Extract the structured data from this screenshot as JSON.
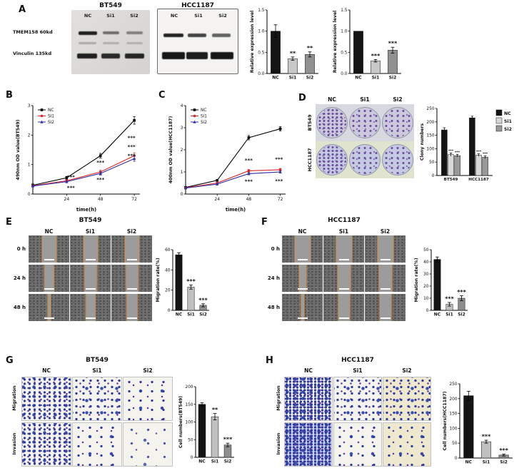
{
  "figure": {
    "panels": {
      "A": {
        "label": "A",
        "blot_groups": [
          {
            "title": "BT549",
            "lanes": [
              "NC",
              "Si1",
              "Si2"
            ]
          },
          {
            "title": "HCC1187",
            "lanes": [
              "NC",
              "Si1",
              "Si2"
            ]
          }
        ],
        "band_labels": [
          "TMEM158 60kd",
          "Vinculin 135kd"
        ]
      },
      "B": {
        "label": "B"
      },
      "C": {
        "label": "C"
      },
      "D": {
        "label": "D",
        "col_labels": [
          "NC",
          "Si1",
          "Si2"
        ],
        "row_labels": [
          "BT549",
          "HCC1187"
        ]
      },
      "E": {
        "label": "E",
        "title": "BT549",
        "col_labels": [
          "NC",
          "Si1",
          "Si2"
        ],
        "row_labels": [
          "0 h",
          "24 h",
          "48 h"
        ]
      },
      "F": {
        "label": "F",
        "title": "HCC1187",
        "col_labels": [
          "NC",
          "Si1",
          "Si2"
        ],
        "row_labels": [
          "0 h",
          "24 h",
          "48 h"
        ]
      },
      "G": {
        "label": "G",
        "title": "BT549",
        "col_labels": [
          "NC",
          "Si1",
          "Si2"
        ],
        "row_labels": [
          "Migration",
          "Invasion"
        ]
      },
      "H": {
        "label": "H",
        "title": "HCC1187",
        "col_labels": [
          "NC",
          "Si1",
          "Si2"
        ],
        "row_labels": [
          "Migration",
          "Invasion"
        ]
      }
    }
  },
  "chart_data": [
    {
      "id": "chart-a1",
      "type": "bar",
      "ylabel": "Relative expression level",
      "categories": [
        "NC",
        "Si1",
        "Si2"
      ],
      "values": [
        1.0,
        0.35,
        0.45
      ],
      "errors": [
        0.15,
        0.04,
        0.06
      ],
      "sig": [
        "",
        "**",
        "**"
      ],
      "colors": [
        "#141414",
        "#c8c8c8",
        "#909090"
      ],
      "ylim": [
        0,
        1.5
      ],
      "yticks": [
        0,
        0.5,
        1,
        1.5
      ],
      "ydec": 1,
      "margins": {
        "l": 24,
        "r": 6,
        "t": 12,
        "b": 13
      }
    },
    {
      "id": "chart-a2",
      "type": "bar",
      "ylabel": "Relative expression level",
      "categories": [
        "NC",
        "Si1",
        "Si2"
      ],
      "values": [
        1.0,
        0.3,
        0.55
      ],
      "errors": [
        0,
        0.03,
        0.07
      ],
      "sig": [
        "",
        "***",
        "***"
      ],
      "colors": [
        "#141414",
        "#c8c8c8",
        "#909090"
      ],
      "ylim": [
        0,
        1.5
      ],
      "yticks": [
        0,
        0.5,
        1,
        1.5
      ],
      "ydec": 1,
      "margins": {
        "l": 24,
        "r": 6,
        "t": 12,
        "b": 13
      }
    },
    {
      "id": "chart-b",
      "type": "line",
      "ylabel": "490nm OD value(BT549)",
      "xlabel": "time(h)",
      "x": [
        0,
        24,
        48,
        72
      ],
      "xticks": [
        24,
        48,
        72
      ],
      "xlim": [
        0,
        76
      ],
      "ylim": [
        0,
        3
      ],
      "yticks": [
        0,
        1,
        2,
        3
      ],
      "ydec": 0,
      "series": [
        {
          "name": "NC",
          "color": "#000000",
          "marker": "square",
          "values": [
            0.3,
            0.55,
            1.3,
            2.5
          ],
          "errors": [
            0.04,
            0.05,
            0.08,
            0.13
          ]
        },
        {
          "name": "Si1",
          "color": "#e02427",
          "marker": "circle",
          "values": [
            0.28,
            0.45,
            0.75,
            1.3
          ],
          "errors": [
            0.03,
            0.04,
            0.06,
            0.1
          ]
        },
        {
          "name": "Si2",
          "color": "#2f2fa8",
          "marker": "triangle",
          "values": [
            0.27,
            0.42,
            0.7,
            1.2
          ],
          "errors": [
            0.03,
            0.04,
            0.06,
            0.09
          ]
        }
      ],
      "annotations": [
        {
          "x": 27,
          "y": 0.52,
          "text": "***"
        },
        {
          "x": 27,
          "y": 0.16,
          "text": "***"
        },
        {
          "x": 48,
          "y": 1.02,
          "text": "***"
        },
        {
          "x": 48,
          "y": 0.44,
          "text": "***"
        },
        {
          "x": 70,
          "y": 1.85,
          "text": "***"
        },
        {
          "x": 70,
          "y": 1.55,
          "text": "***"
        },
        {
          "x": 70,
          "y": 1.25,
          "text": "***"
        }
      ],
      "legend_position": "top-left",
      "margins": {
        "l": 30,
        "r": 10,
        "t": 8,
        "b": 26
      }
    },
    {
      "id": "chart-c",
      "type": "line",
      "ylabel": "400nm OD value(HCC1187)",
      "xlabel": "time(h)",
      "x": [
        0,
        24,
        48,
        72
      ],
      "xticks": [
        24,
        48,
        72
      ],
      "xlim": [
        0,
        76
      ],
      "ylim": [
        0,
        4
      ],
      "yticks": [
        0,
        1,
        2,
        3,
        4
      ],
      "ydec": 0,
      "series": [
        {
          "name": "NC",
          "color": "#000000",
          "marker": "square",
          "values": [
            0.3,
            0.62,
            2.55,
            2.95
          ],
          "errors": [
            0.03,
            0.04,
            0.1,
            0.1
          ]
        },
        {
          "name": "Si1",
          "color": "#e02427",
          "marker": "circle",
          "values": [
            0.28,
            0.5,
            1.05,
            1.1
          ],
          "errors": [
            0.03,
            0.04,
            0.06,
            0.06
          ]
        },
        {
          "name": "Si2",
          "color": "#2f2fa8",
          "marker": "triangle",
          "values": [
            0.27,
            0.45,
            0.92,
            1.0
          ],
          "errors": [
            0.03,
            0.04,
            0.05,
            0.05
          ]
        }
      ],
      "annotations": [
        {
          "x": 48,
          "y": 1.45,
          "text": "***"
        },
        {
          "x": 48,
          "y": 0.5,
          "text": "***"
        },
        {
          "x": 71,
          "y": 1.5,
          "text": "***"
        },
        {
          "x": 71,
          "y": 0.52,
          "text": "***"
        }
      ],
      "legend_position": "top-left",
      "margins": {
        "l": 30,
        "r": 10,
        "t": 8,
        "b": 26
      }
    },
    {
      "id": "chart-d",
      "type": "grouped-bar",
      "ylabel": "Clony numbers",
      "categories": [
        "BT549",
        "HCC1187"
      ],
      "series": [
        {
          "name": "NC",
          "color": "#141414",
          "values": [
            170,
            215
          ],
          "errors": [
            8,
            6
          ]
        },
        {
          "name": "Si1",
          "color": "#d8d8d8",
          "values": [
            78,
            76
          ],
          "errors": [
            6,
            5
          ]
        },
        {
          "name": "Si2",
          "color": "#999999",
          "values": [
            74,
            68
          ],
          "errors": [
            5,
            5
          ]
        }
      ],
      "sig": [
        [
          "",
          "***",
          "***"
        ],
        [
          "",
          "***",
          "***"
        ]
      ],
      "ylim": [
        0,
        250
      ],
      "yticks": [
        0,
        50,
        100,
        150,
        200,
        250
      ],
      "ydec": 0,
      "legend_position": "right",
      "margins": {
        "l": 28,
        "r": 50,
        "t": 8,
        "b": 12
      }
    },
    {
      "id": "chart-e",
      "type": "bar",
      "ylabel": "Migration rate(%)",
      "categories": [
        "NC",
        "Si1",
        "Si2"
      ],
      "values": [
        55,
        23,
        5
      ],
      "errors": [
        2,
        2,
        1.5
      ],
      "sig": [
        "",
        "***",
        "***"
      ],
      "colors": [
        "#141414",
        "#c0c0c0",
        "#8e8e8e"
      ],
      "ylim": [
        0,
        60
      ],
      "yticks": [
        0,
        20,
        40,
        60
      ],
      "ydec": 0,
      "margins": {
        "l": 24,
        "r": 5,
        "t": 12,
        "b": 13
      }
    },
    {
      "id": "chart-f",
      "type": "bar",
      "ylabel": "Migration rate(%)",
      "categories": [
        "NC",
        "Si1",
        "Si2"
      ],
      "values": [
        42,
        5,
        10
      ],
      "errors": [
        2,
        1.5,
        2
      ],
      "sig": [
        "",
        "***",
        "***"
      ],
      "colors": [
        "#141414",
        "#c0c0c0",
        "#8e8e8e"
      ],
      "ylim": [
        0,
        50
      ],
      "yticks": [
        0,
        10,
        20,
        30,
        40,
        50
      ],
      "ydec": 0,
      "margins": {
        "l": 24,
        "r": 5,
        "t": 12,
        "b": 13
      }
    },
    {
      "id": "chart-g",
      "type": "bar",
      "ylabel": "Cell numbers(BT549)",
      "categories": [
        "NC",
        "Si1",
        "Si2"
      ],
      "values": [
        150,
        115,
        35
      ],
      "errors": [
        5,
        9,
        5
      ],
      "sig": [
        "",
        "**",
        "***"
      ],
      "colors": [
        "#141414",
        "#c0c0c0",
        "#8e8e8e"
      ],
      "ylim": [
        0,
        200
      ],
      "yticks": [
        0,
        50,
        100,
        150,
        200
      ],
      "ydec": 0,
      "margins": {
        "l": 28,
        "r": 6,
        "t": 12,
        "b": 13
      }
    },
    {
      "id": "chart-h",
      "type": "bar",
      "ylabel": "Cell numbers(HCC1187)",
      "categories": [
        "NC",
        "Si1",
        "Si2"
      ],
      "values": [
        210,
        55,
        10
      ],
      "errors": [
        15,
        5,
        3
      ],
      "sig": [
        "",
        "***",
        "***"
      ],
      "colors": [
        "#141414",
        "#c0c0c0",
        "#8e8e8e"
      ],
      "ylim": [
        0,
        250
      ],
      "yticks": [
        0,
        50,
        100,
        150,
        200,
        250
      ],
      "ydec": 0,
      "margins": {
        "l": 30,
        "r": 8,
        "t": 14,
        "b": 14
      }
    }
  ]
}
